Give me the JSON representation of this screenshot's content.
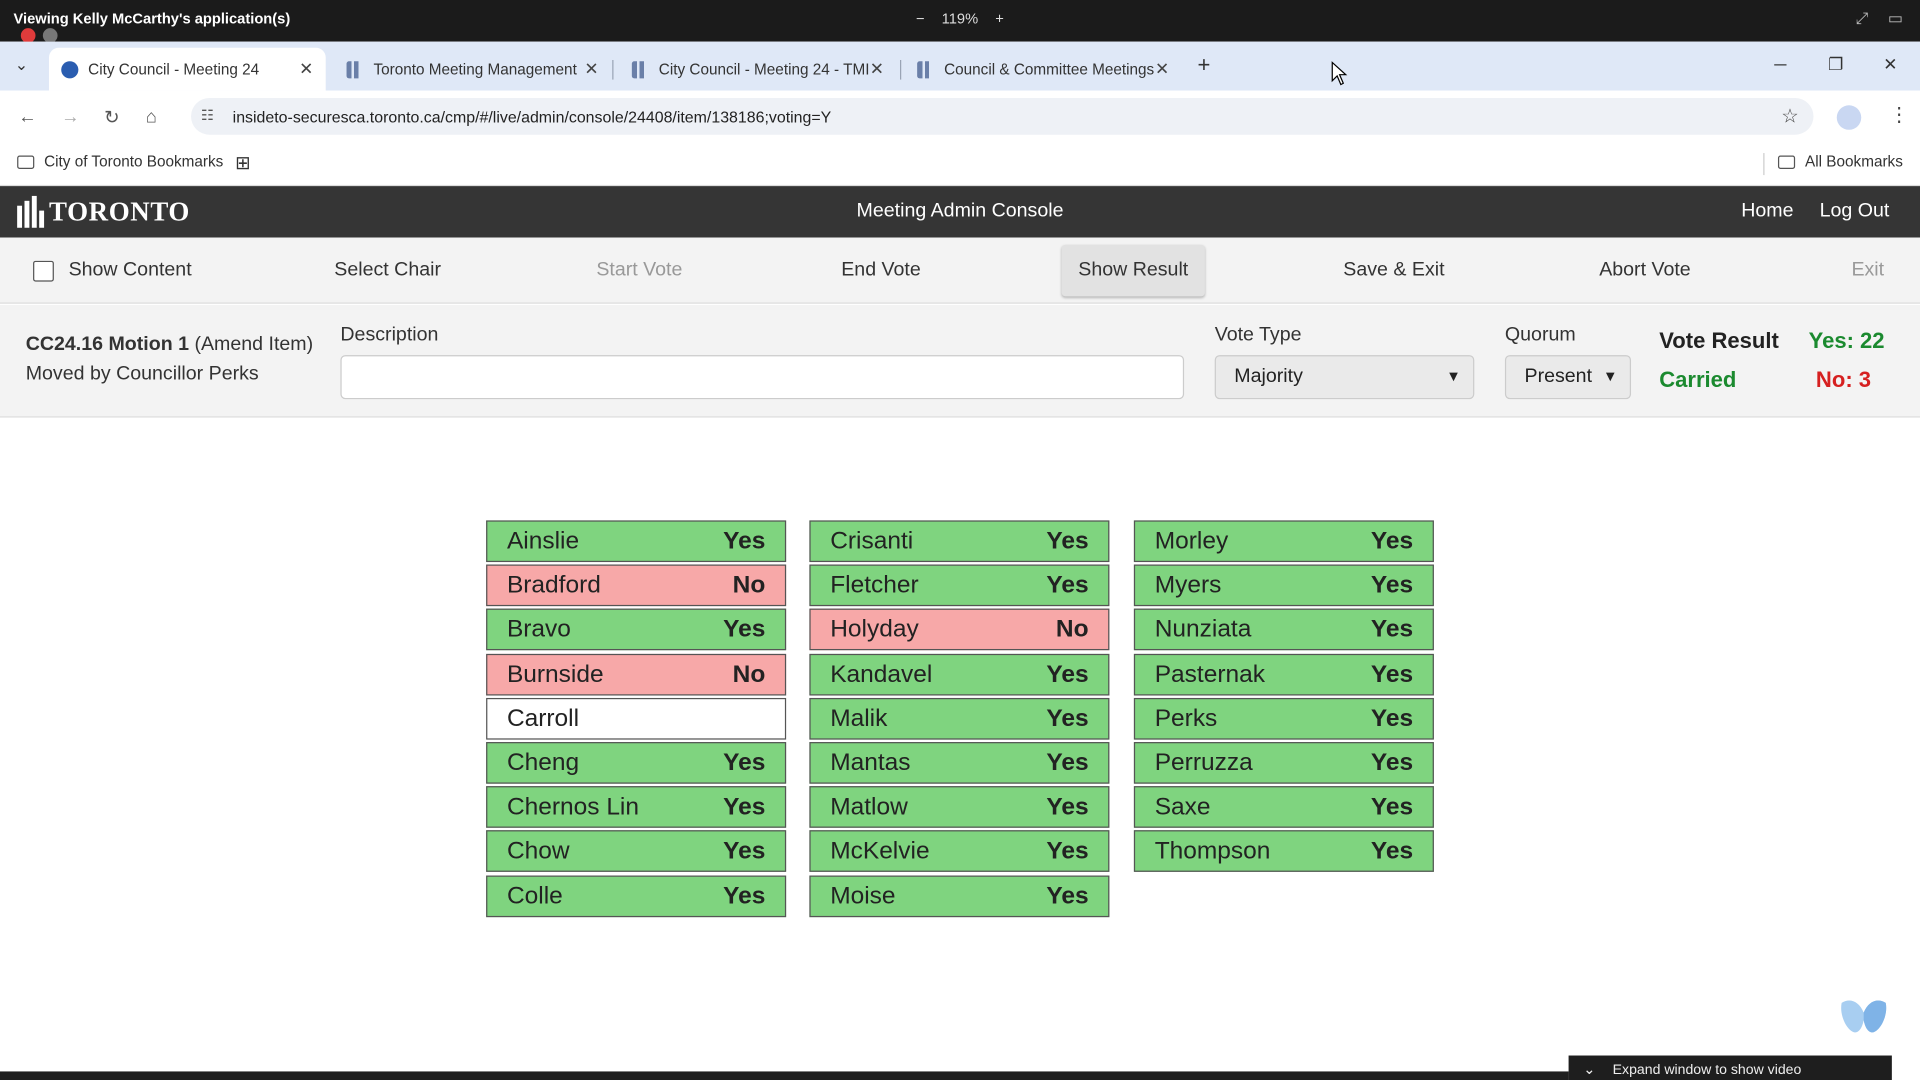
{
  "share_bar": {
    "title": "Viewing Kelly McCarthy's application(s)",
    "zoom_minus": "−",
    "zoom_level": "119%",
    "zoom_plus": "+"
  },
  "tabs": [
    {
      "label": "City Council - Meeting 24"
    },
    {
      "label": "Toronto Meeting Management"
    },
    {
      "label": "City Council - Meeting 24 - TMI"
    },
    {
      "label": "Council & Committee Meetings"
    }
  ],
  "address": {
    "url": "insideto-securesca.toronto.ca/cmp/#/live/admin/console/24408/item/138186;voting=Y"
  },
  "bookmarks": {
    "folder": "City of Toronto Bookmarks",
    "all": "All Bookmarks"
  },
  "header": {
    "logo_text": "TORONTO",
    "title": "Meeting Admin Console",
    "home": "Home",
    "logout": "Log Out"
  },
  "toolbar": {
    "show_content": "Show Content",
    "select_chair": "Select Chair",
    "start_vote": "Start Vote",
    "end_vote": "End Vote",
    "show_result": "Show Result",
    "save_exit": "Save & Exit",
    "abort_vote": "Abort Vote",
    "exit": "Exit"
  },
  "motion": {
    "id": "CC24.16 Motion 1",
    "type": "(Amend Item)",
    "moved_by": "Moved by Councillor Perks",
    "description_label": "Description",
    "description_value": "",
    "vote_type_label": "Vote Type",
    "vote_type_value": "Majority",
    "quorum_label": "Quorum",
    "quorum_value": "Present",
    "vote_result_label": "Vote Result",
    "result": "Carried",
    "yes_count": "Yes: 22",
    "no_count": "No: 3"
  },
  "votes": [
    {
      "name": "Ainslie",
      "vote": "Yes"
    },
    {
      "name": "Bradford",
      "vote": "No"
    },
    {
      "name": "Bravo",
      "vote": "Yes"
    },
    {
      "name": "Burnside",
      "vote": "No"
    },
    {
      "name": "Carroll",
      "vote": ""
    },
    {
      "name": "Cheng",
      "vote": "Yes"
    },
    {
      "name": "Chernos Lin",
      "vote": "Yes"
    },
    {
      "name": "Chow",
      "vote": "Yes"
    },
    {
      "name": "Colle",
      "vote": "Yes"
    },
    {
      "name": "Crisanti",
      "vote": "Yes"
    },
    {
      "name": "Fletcher",
      "vote": "Yes"
    },
    {
      "name": "Holyday",
      "vote": "No"
    },
    {
      "name": "Kandavel",
      "vote": "Yes"
    },
    {
      "name": "Malik",
      "vote": "Yes"
    },
    {
      "name": "Mantas",
      "vote": "Yes"
    },
    {
      "name": "Matlow",
      "vote": "Yes"
    },
    {
      "name": "McKelvie",
      "vote": "Yes"
    },
    {
      "name": "Moise",
      "vote": "Yes"
    },
    {
      "name": "Morley",
      "vote": "Yes"
    },
    {
      "name": "Myers",
      "vote": "Yes"
    },
    {
      "name": "Nunziata",
      "vote": "Yes"
    },
    {
      "name": "Pasternak",
      "vote": "Yes"
    },
    {
      "name": "Perks",
      "vote": "Yes"
    },
    {
      "name": "Perruzza",
      "vote": "Yes"
    },
    {
      "name": "Saxe",
      "vote": "Yes"
    },
    {
      "name": "Thompson",
      "vote": "Yes"
    }
  ],
  "overlay": {
    "expand_video": "Expand window to show video"
  },
  "colors": {
    "yes_bg": "#7fd47f",
    "no_bg": "#f7a8a8",
    "carried": "#1b8a2f",
    "no_text": "#d62020",
    "header_bg": "#353535"
  }
}
